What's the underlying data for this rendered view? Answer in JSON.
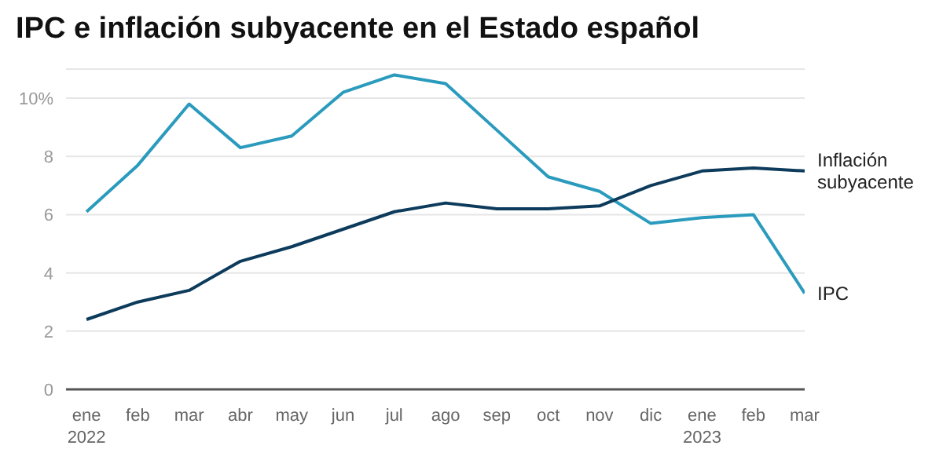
{
  "chart_data": {
    "type": "line",
    "title": "IPC e inflación subyacente en el Estado español",
    "categories": [
      "ene\n2022",
      "feb",
      "mar",
      "abr",
      "may",
      "jun",
      "jul",
      "ago",
      "sep",
      "oct",
      "nov",
      "dic",
      "ene\n2023",
      "feb",
      "mar"
    ],
    "series": [
      {
        "name": "IPC",
        "color": "#2b9bbd",
        "values": [
          6.1,
          7.7,
          9.8,
          8.3,
          8.7,
          10.2,
          10.8,
          10.5,
          8.9,
          7.3,
          6.8,
          5.7,
          5.9,
          6.0,
          3.3
        ]
      },
      {
        "name": "Inflación\nsubyacente",
        "color": "#0d3b5c",
        "values": [
          2.4,
          3.0,
          3.4,
          4.4,
          4.9,
          5.5,
          6.1,
          6.4,
          6.2,
          6.2,
          6.3,
          7.0,
          7.5,
          7.6,
          7.5
        ]
      }
    ],
    "ylim": [
      0,
      11
    ],
    "yticks": [
      0,
      2,
      4,
      6,
      8,
      {
        "value": 10,
        "label": "10%"
      },
      {
        "value": 11,
        "label": null
      }
    ],
    "grid": "y",
    "legend": false,
    "marker": "none",
    "line_style": "solid"
  }
}
